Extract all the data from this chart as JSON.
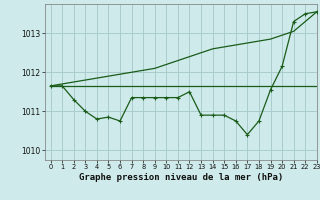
{
  "title": "Graphe pression niveau de la mer (hPa)",
  "bg_color": "#ceeaea",
  "grid_color": "#aacccc",
  "line_color": "#1a5c1a",
  "xlim": [
    -0.5,
    23
  ],
  "ylim": [
    1009.75,
    1013.75
  ],
  "yticks": [
    1010,
    1011,
    1012,
    1013
  ],
  "xticks": [
    0,
    1,
    2,
    3,
    4,
    5,
    6,
    7,
    8,
    9,
    10,
    11,
    12,
    13,
    14,
    15,
    16,
    17,
    18,
    19,
    20,
    21,
    22,
    23
  ],
  "hours": [
    0,
    1,
    2,
    3,
    4,
    5,
    6,
    7,
    8,
    9,
    10,
    11,
    12,
    13,
    14,
    15,
    16,
    17,
    18,
    19,
    20,
    21,
    22,
    23
  ],
  "pressure_main": [
    1011.65,
    1011.65,
    1011.3,
    1011.0,
    1010.8,
    1010.85,
    1010.75,
    1011.35,
    1011.35,
    1011.35,
    1011.35,
    1011.35,
    1011.5,
    1010.9,
    1010.9,
    1010.9,
    1010.75,
    1010.4,
    1010.75,
    1011.55,
    1012.15,
    1013.3,
    1013.5,
    1013.55
  ],
  "pressure_diag": [
    1011.65,
    1011.7,
    1011.75,
    1011.8,
    1011.85,
    1011.9,
    1011.95,
    1012.0,
    1012.05,
    1012.1,
    1012.2,
    1012.3,
    1012.4,
    1012.5,
    1012.6,
    1012.65,
    1012.7,
    1012.75,
    1012.8,
    1012.85,
    1012.95,
    1013.05,
    1013.3,
    1013.55
  ],
  "pressure_flat": [
    1011.65,
    1011.65,
    1011.65,
    1011.65,
    1011.65,
    1011.65,
    1011.65,
    1011.65,
    1011.65,
    1011.65,
    1011.65,
    1011.65,
    1011.65,
    1011.65,
    1011.65,
    1011.65,
    1011.65,
    1011.65,
    1011.65,
    1011.65,
    1011.65,
    1011.65,
    1011.65,
    1011.65
  ]
}
